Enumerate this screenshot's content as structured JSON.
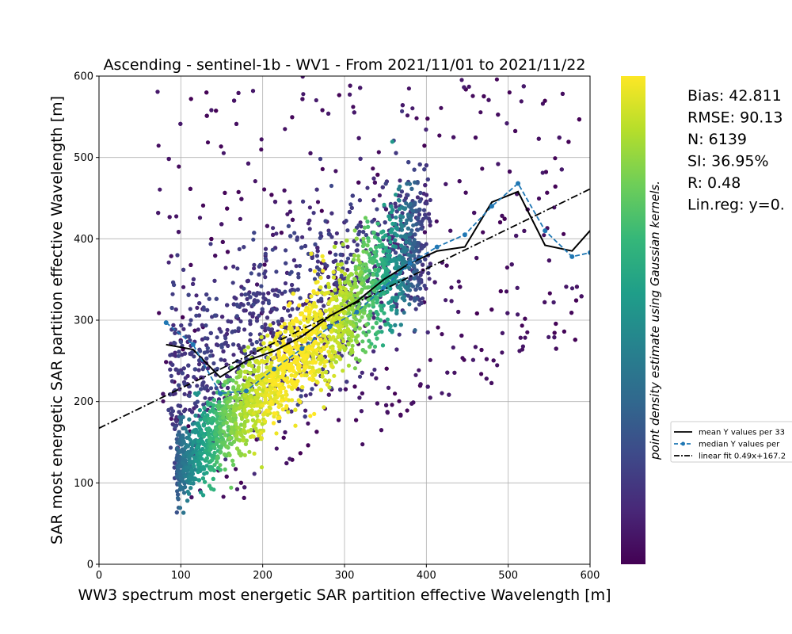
{
  "chart_data": {
    "type": "scatter",
    "title": "Ascending - sentinel-1b - WV1 - From 2021/11/01 to 2021/11/22",
    "xlabel": "WW3 spectrum most energetic SAR partition effective Wavelength [m]",
    "ylabel": "SAR most energetic SAR partition effective Wavelength [m]",
    "xlim": [
      0,
      600
    ],
    "ylim": [
      0,
      600
    ],
    "xticks": [
      "0",
      "100",
      "200",
      "300",
      "400",
      "500",
      "600"
    ],
    "yticks": [
      "0",
      "100",
      "200",
      "300",
      "400",
      "500",
      "600"
    ],
    "grid": true,
    "colorbar_label": "point density estimate using Gaussian kernels.",
    "colormap": [
      "#440154",
      "#482878",
      "#3e4989",
      "#31688e",
      "#26828e",
      "#1f9e89",
      "#35b779",
      "#6ece58",
      "#b5de2b",
      "#fde725"
    ],
    "stats": [
      "Bias: 42.811",
      "RMSE: 90.13",
      "N: 6139",
      "SI: 36.95%",
      "R: 0.48",
      "Lin.reg: y=0."
    ],
    "legend": {
      "placement": "right",
      "entries": [
        {
          "label": "mean Y values per 33",
          "style": "solid",
          "color": "#000000"
        },
        {
          "label": "median Y values per",
          "style": "dashed-dot-marker",
          "color": "#1f77b4"
        },
        {
          "label": "linear fit 0.49x+167.2",
          "style": "dashdot",
          "color": "#000000"
        }
      ]
    },
    "series": [
      {
        "name": "mean Y values per 33",
        "x": [
          82,
          115,
          148,
          180,
          214,
          248,
          282,
          315,
          348,
          380,
          413,
          447,
          480,
          512,
          545,
          578,
          600
        ],
        "y": [
          270,
          264,
          230,
          250,
          262,
          280,
          305,
          323,
          350,
          370,
          385,
          390,
          445,
          458,
          392,
          385,
          410
        ]
      },
      {
        "name": "median Y values per",
        "x": [
          82,
          115,
          148,
          180,
          214,
          248,
          282,
          315,
          348,
          380,
          413,
          447,
          480,
          512,
          545,
          578,
          600
        ],
        "y": [
          297,
          270,
          210,
          213,
          240,
          265,
          292,
          310,
          340,
          370,
          390,
          405,
          440,
          468,
          410,
          378,
          383
        ]
      },
      {
        "name": "linear fit 0.49x+167.2",
        "x": [
          0,
          600
        ],
        "y": [
          167.2,
          461.2
        ]
      }
    ],
    "scatter_points_N": 6139
  }
}
